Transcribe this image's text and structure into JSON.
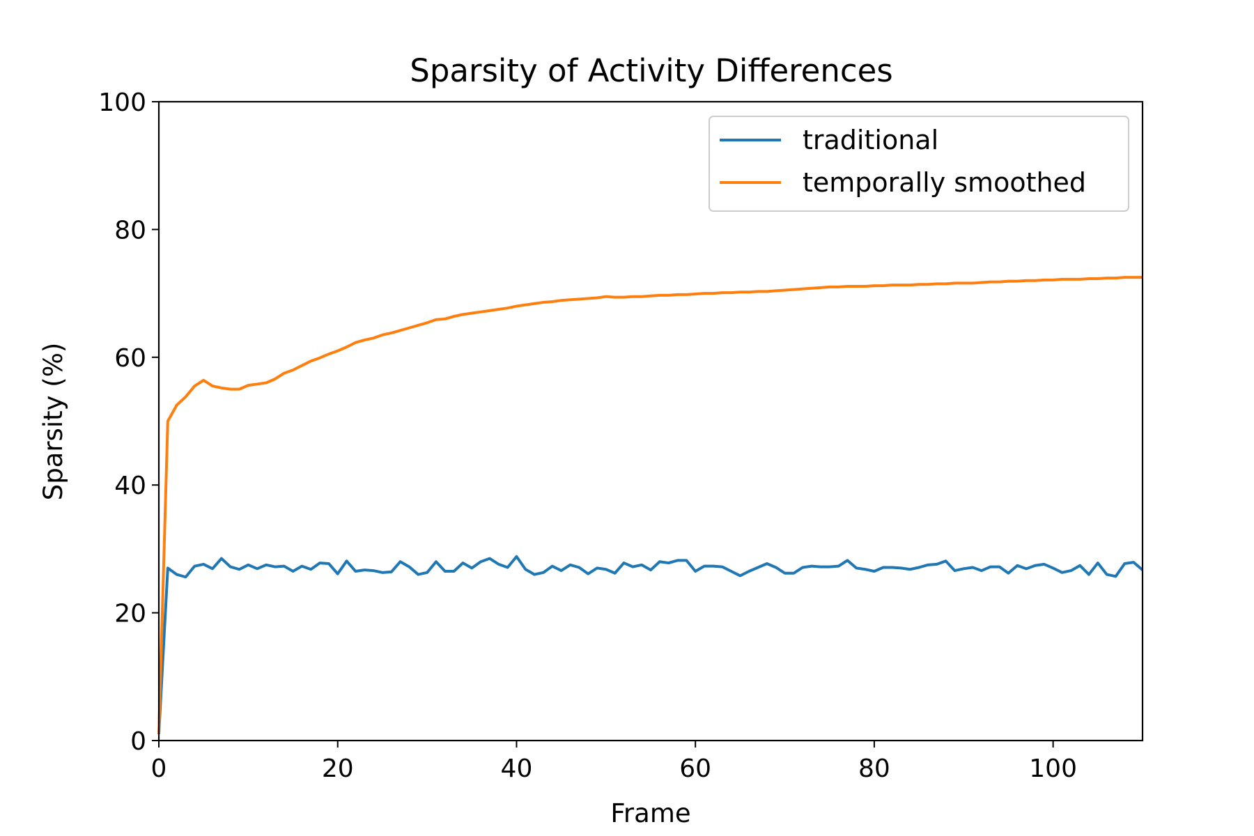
{
  "chart_data": {
    "type": "line",
    "title": "Sparsity of Activity Differences",
    "xlabel": "Frame",
    "ylabel": "Sparsity (%)",
    "xlim": [
      0,
      110
    ],
    "ylim": [
      0,
      100
    ],
    "xticks": [
      0,
      20,
      40,
      60,
      80,
      100
    ],
    "yticks": [
      0,
      20,
      40,
      60,
      80,
      100
    ],
    "grid": false,
    "legend_position": "top-right",
    "series": [
      {
        "name": "traditional",
        "color": "#1f77b4",
        "values": [
          1.0,
          27.0,
          26.0,
          25.6,
          27.3,
          27.6,
          26.9,
          28.5,
          27.2,
          26.8,
          27.5,
          26.9,
          27.5,
          27.2,
          27.3,
          26.5,
          27.3,
          26.8,
          27.8,
          27.7,
          26.1,
          28.1,
          26.5,
          26.7,
          26.6,
          26.3,
          26.4,
          28.0,
          27.2,
          26.0,
          26.3,
          28.0,
          26.5,
          26.5,
          27.8,
          27.0,
          28.0,
          28.5,
          27.6,
          27.1,
          28.8,
          26.8,
          26.0,
          26.3,
          27.3,
          26.6,
          27.5,
          27.1,
          26.1,
          27.0,
          26.8,
          26.2,
          27.8,
          27.2,
          27.5,
          26.7,
          28.0,
          27.8,
          28.2,
          28.2,
          26.5,
          27.3,
          27.3,
          27.2,
          26.5,
          25.8,
          26.5,
          27.1,
          27.7,
          27.1,
          26.2,
          26.2,
          27.1,
          27.3,
          27.2,
          27.2,
          27.3,
          28.2,
          27.0,
          26.8,
          26.5,
          27.1,
          27.1,
          27.0,
          26.8,
          27.1,
          27.5,
          27.6,
          28.1,
          26.6,
          26.9,
          27.1,
          26.6,
          27.2,
          27.2,
          26.2,
          27.4,
          26.9,
          27.4,
          27.6,
          27.0,
          26.3,
          26.6,
          27.4,
          26.0,
          27.8,
          26.0,
          25.7,
          27.7,
          27.9,
          26.7
        ]
      },
      {
        "name": "temporally smoothed",
        "color": "#ff7f0e",
        "values": [
          1.0,
          50.0,
          52.5,
          53.8,
          55.5,
          56.4,
          55.5,
          55.2,
          55.0,
          55.0,
          55.6,
          55.8,
          56.0,
          56.6,
          57.5,
          58.0,
          58.7,
          59.4,
          59.9,
          60.5,
          61.0,
          61.6,
          62.3,
          62.7,
          63.0,
          63.5,
          63.8,
          64.2,
          64.6,
          65.0,
          65.4,
          65.9,
          66.0,
          66.4,
          66.7,
          66.9,
          67.1,
          67.3,
          67.5,
          67.7,
          68.0,
          68.2,
          68.4,
          68.6,
          68.7,
          68.9,
          69.0,
          69.1,
          69.2,
          69.3,
          69.5,
          69.4,
          69.4,
          69.5,
          69.5,
          69.6,
          69.7,
          69.7,
          69.8,
          69.8,
          69.9,
          70.0,
          70.0,
          70.1,
          70.1,
          70.2,
          70.2,
          70.3,
          70.3,
          70.4,
          70.5,
          70.6,
          70.7,
          70.8,
          70.9,
          71.0,
          71.0,
          71.1,
          71.1,
          71.1,
          71.2,
          71.2,
          71.3,
          71.3,
          71.3,
          71.4,
          71.4,
          71.5,
          71.5,
          71.6,
          71.6,
          71.6,
          71.7,
          71.8,
          71.8,
          71.9,
          71.9,
          72.0,
          72.0,
          72.1,
          72.1,
          72.2,
          72.2,
          72.2,
          72.3,
          72.3,
          72.4,
          72.4,
          72.5,
          72.5,
          72.5
        ]
      }
    ]
  }
}
